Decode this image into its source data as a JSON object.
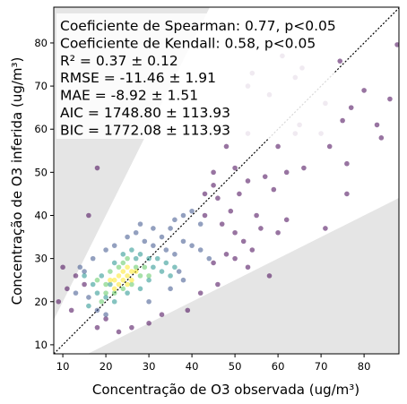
{
  "chart_data": {
    "type": "scatter",
    "annotations": [
      "Coeficiente de Spearman: 0.77, p<0.05",
      "Coeficiente de Kendall: 0.58, p<0.05",
      "R² = 0.37 ± 0.12",
      "RMSE = -11.46 ± 1.91",
      "MAE = -8.92 ± 1.51",
      "AIC = 1748.80 ± 113.93",
      "BIC = 1772.08 ± 113.93"
    ],
    "x_label": "Concentração de O3 observada (ug/m³)",
    "y_label": "Concentração de O3 inferida (ug/m³)",
    "xlim": [
      7.9,
      88.1
    ],
    "ylim": [
      7.9,
      88.3
    ],
    "xticks": [
      10,
      20,
      30,
      40,
      50,
      60,
      70,
      80
    ],
    "yticks": [
      10,
      20,
      30,
      40,
      50,
      60,
      70,
      80
    ],
    "shade_slopes": [
      2,
      0.5
    ],
    "series": [
      {
        "color": "#440154",
        "x": [
          87.7,
          74.4,
          65.6,
          61,
          54,
          53,
          58,
          64,
          80,
          77,
          71,
          86,
          83,
          75,
          65,
          70,
          64,
          53,
          60,
          48,
          72,
          84,
          76,
          50,
          66,
          62,
          57,
          53,
          45,
          76,
          59,
          45,
          43,
          46,
          51,
          18,
          16,
          55,
          62,
          71,
          10,
          11,
          9,
          12,
          60,
          50,
          47,
          43,
          49,
          52,
          54,
          48,
          45,
          58,
          50,
          53,
          46,
          39,
          30,
          26,
          23,
          20,
          18,
          33,
          42,
          56,
          13,
          15
        ],
        "values": [
          79.6,
          75.8,
          74.2,
          77,
          73,
          70,
          68,
          72,
          69,
          65,
          66,
          67,
          61,
          62,
          61,
          59,
          59,
          59,
          56,
          56,
          56,
          58,
          52,
          51,
          51,
          50,
          49,
          48,
          50,
          45,
          46,
          47,
          45,
          44,
          45,
          51,
          40,
          40,
          39,
          37,
          28,
          23,
          20,
          18,
          36,
          36,
          38,
          40,
          41,
          34,
          32,
          31,
          29,
          26,
          30,
          28,
          24,
          18,
          15,
          14,
          13,
          16,
          14,
          17,
          22,
          37,
          26,
          24
        ]
      },
      {
        "color": "#3b528b",
        "x": [
          40,
          38,
          36,
          35,
          42,
          38,
          40,
          42,
          44,
          36,
          33,
          34,
          31,
          29,
          27,
          25,
          22,
          20,
          17,
          14,
          15,
          13,
          16,
          18,
          20,
          30,
          35,
          38,
          37,
          31,
          28
        ],
        "values": [
          41,
          40,
          39,
          37,
          38,
          34,
          33,
          32,
          30,
          31,
          35,
          32,
          33,
          34,
          36,
          35,
          33,
          32,
          30,
          28,
          27,
          22,
          21,
          18,
          17,
          20,
          23,
          25,
          27,
          37,
          38
        ]
      },
      {
        "color": "#21918c",
        "x": [
          22,
          24,
          26,
          28,
          30,
          32,
          34,
          36,
          33,
          30,
          28,
          25,
          22,
          20,
          18,
          16,
          17,
          19,
          15,
          21,
          31,
          27,
          35
        ],
        "values": [
          29,
          31,
          32,
          31,
          30,
          30,
          29,
          28,
          27,
          25,
          23,
          22,
          20,
          21,
          22,
          19,
          24,
          26,
          26,
          24,
          28,
          30,
          26
        ]
      },
      {
        "color": "#5ec962",
        "x": [
          20,
          21,
          23,
          24,
          25,
          27,
          28,
          26,
          24,
          22,
          20,
          19,
          29,
          30,
          18
        ],
        "values": [
          24,
          27,
          28,
          29,
          30,
          28,
          26,
          24,
          23,
          22,
          22,
          20,
          28,
          26,
          25
        ]
      },
      {
        "color": "#fde725",
        "x": [
          22,
          23,
          24,
          25,
          26,
          27,
          23,
          24,
          25,
          26,
          22,
          21,
          25
        ],
        "values": [
          25,
          26,
          27,
          26,
          27,
          27,
          24,
          25,
          28,
          25,
          23,
          25,
          24
        ]
      }
    ]
  }
}
